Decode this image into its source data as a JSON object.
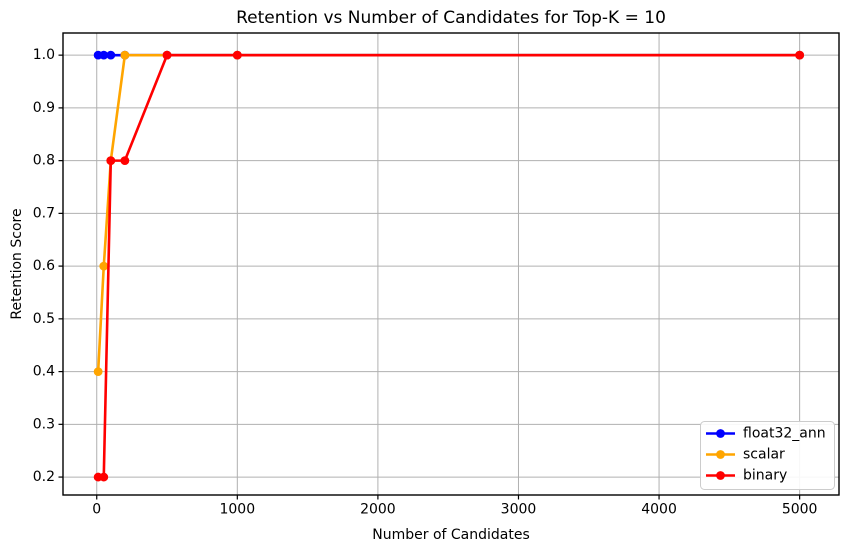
{
  "chart_data": {
    "type": "line",
    "title": "Retention vs Number of Candidates for Top-K = 10",
    "xlabel": "Number of Candidates",
    "ylabel": "Retention Score",
    "x": [
      10,
      50,
      100,
      200,
      500,
      1000,
      5000
    ],
    "series": [
      {
        "name": "float32_ann",
        "color": "#0000ff",
        "values": [
          1.0,
          1.0,
          1.0,
          1.0,
          1.0,
          1.0,
          1.0
        ]
      },
      {
        "name": "scalar",
        "color": "#ffa500",
        "values": [
          0.4,
          0.6,
          0.8,
          1.0,
          1.0,
          1.0,
          1.0
        ]
      },
      {
        "name": "binary",
        "color": "#ff0000",
        "values": [
          0.2,
          0.2,
          0.8,
          0.8,
          1.0,
          1.0,
          1.0
        ]
      }
    ],
    "xticks": [
      0,
      1000,
      2000,
      3000,
      4000,
      5000
    ],
    "xtick_labels": [
      "0",
      "1000",
      "2000",
      "3000",
      "4000",
      "5000"
    ],
    "yticks": [
      0.2,
      0.3,
      0.4,
      0.5,
      0.6,
      0.7,
      0.8,
      0.9,
      1.0
    ],
    "ytick_labels": [
      "0.2",
      "0.3",
      "0.4",
      "0.5",
      "0.6",
      "0.7",
      "0.8",
      "0.9",
      "1.0"
    ],
    "xlim": [
      -240,
      5280
    ],
    "ylim": [
      0.166,
      1.042
    ],
    "grid": true,
    "grid_color": "#b0b0b0",
    "axis_color": "#000000",
    "legend": {
      "position": "lower right",
      "entries": [
        "float32_ann",
        "scalar",
        "binary"
      ]
    }
  }
}
